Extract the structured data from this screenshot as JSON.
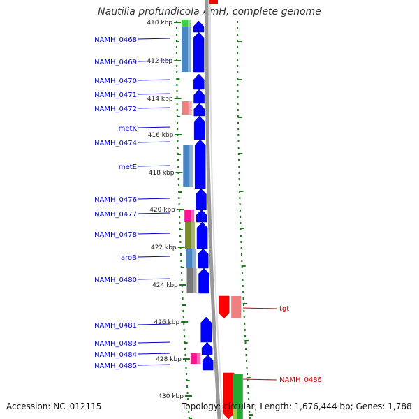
{
  "title": "Nautilia profundicola AmH, complete genome",
  "accession_text": "Accession: NC_012115",
  "topology_text": "Topology: circular; Length: 1,676,444 bp; Genes: 1,788",
  "ruler": {
    "labels": [
      "410 kbp",
      "412 kbp",
      "414 kbp",
      "416 kbp",
      "418 kbp",
      "420 kbp",
      "422 kbp",
      "424 kbp",
      "426 kbp",
      "428 kbp",
      "430 kbp"
    ]
  },
  "colors": {
    "label_forward": "#0000cc",
    "label_reverse": "#cc0000",
    "cds": "#0000ff",
    "trna": "#ff0000",
    "backbone": "#999999",
    "ruler": "#1a7a1a"
  },
  "genes": [
    {
      "name": "NAMH_0468",
      "strand": "forward"
    },
    {
      "name": "NAMH_0469",
      "strand": "forward"
    },
    {
      "name": "NAMH_0470",
      "strand": "forward"
    },
    {
      "name": "NAMH_0471",
      "strand": "forward"
    },
    {
      "name": "NAMH_0472",
      "strand": "forward"
    },
    {
      "name": "metK",
      "strand": "forward"
    },
    {
      "name": "NAMH_0474",
      "strand": "forward"
    },
    {
      "name": "metE",
      "strand": "forward"
    },
    {
      "name": "NAMH_0476",
      "strand": "forward"
    },
    {
      "name": "NAMH_0477",
      "strand": "forward"
    },
    {
      "name": "NAMH_0478",
      "strand": "forward"
    },
    {
      "name": "aroB",
      "strand": "forward"
    },
    {
      "name": "NAMH_0480",
      "strand": "forward"
    },
    {
      "name": "NAMH_0481",
      "strand": "forward"
    },
    {
      "name": "NAMH_0483",
      "strand": "forward"
    },
    {
      "name": "NAMH_0484",
      "strand": "forward"
    },
    {
      "name": "NAMH_0485",
      "strand": "forward"
    },
    {
      "name": "tgt",
      "strand": "reverse"
    },
    {
      "name": "NAMH_0486",
      "strand": "reverse"
    }
  ],
  "cog_colors": [
    "#44cc44",
    "#4a87c2",
    "#f08080",
    "#ff1493",
    "#7b8b2a",
    "#777777",
    "#99cc44"
  ]
}
